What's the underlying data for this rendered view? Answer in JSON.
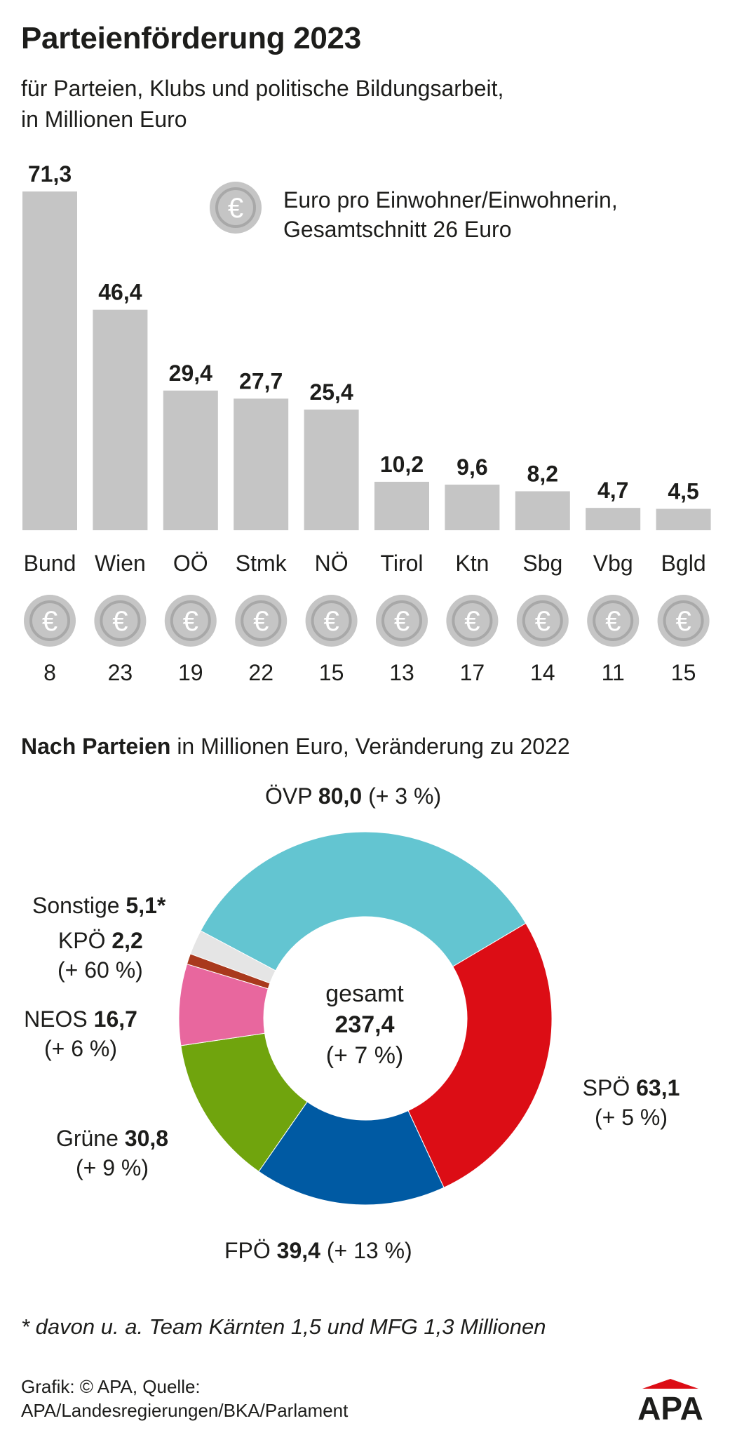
{
  "title": "Parteienförderung 2023",
  "subtitle_line1": "für Parteien, Klubs und politische Bildungsarbeit,",
  "subtitle_line2": "in Millionen Euro",
  "legend": {
    "line1": "Euro pro Einwohner/Einwohnerin,",
    "line2": "Gesamtschnitt 26 Euro",
    "icon": "euro-coin-icon"
  },
  "colors": {
    "bar": "#c5c5c5",
    "coin": "#c5c5c5",
    "coin_symbol": "#a8a8a8",
    "ovp": "#63c5d1",
    "spo": "#dc0d15",
    "fpo": "#005aa3",
    "gruene": "#70a40d",
    "neos": "#e8679e",
    "kpo": "#a9391d",
    "sonstige": "#e5e5e5"
  },
  "chart_data": [
    {
      "type": "bar",
      "categories": [
        "Bund",
        "Wien",
        "OÖ",
        "Stmk",
        "NÖ",
        "Tirol",
        "Ktn",
        "Sbg",
        "Vbg",
        "Bgld"
      ],
      "values": [
        71.3,
        46.4,
        29.4,
        27.7,
        25.4,
        10.2,
        9.6,
        8.2,
        4.7,
        4.5
      ],
      "value_labels": [
        "71,3",
        "46,4",
        "29,4",
        "27,7",
        "25,4",
        "10,2",
        "9,6",
        "8,2",
        "4,7",
        "4,5"
      ],
      "per_capita_euro": [
        "8",
        "23",
        "19",
        "22",
        "15",
        "13",
        "17",
        "14",
        "11",
        "15"
      ],
      "ylim": [
        0,
        71.3
      ]
    },
    {
      "type": "pie",
      "slices": [
        {
          "name": "ÖVP",
          "value": 80.0,
          "value_label": "80,0",
          "change": "(+ 3 %)",
          "color_key": "ovp"
        },
        {
          "name": "SPÖ",
          "value": 63.1,
          "value_label": "63,1",
          "change": "(+ 5 %)",
          "color_key": "spo"
        },
        {
          "name": "FPÖ",
          "value": 39.4,
          "value_label": "39,4",
          "change": "(+ 13 %)",
          "color_key": "fpo"
        },
        {
          "name": "Grüne",
          "value": 30.8,
          "value_label": "30,8",
          "change": "(+ 9 %)",
          "color_key": "gruene"
        },
        {
          "name": "NEOS",
          "value": 16.7,
          "value_label": "16,7",
          "change": "(+ 6 %)",
          "color_key": "neos"
        },
        {
          "name": "KPÖ",
          "value": 2.2,
          "value_label": "2,2",
          "change": "(+ 60 %)",
          "color_key": "kpo"
        },
        {
          "name": "Sonstige",
          "value": 5.1,
          "value_label": "5,1*",
          "change": "",
          "color_key": "sonstige"
        }
      ],
      "center": {
        "line1": "gesamt",
        "line2": "237,4",
        "line3": "(+ 7 %)"
      }
    }
  ],
  "section2": {
    "bold": "Nach Parteien",
    "rest": " in Millionen Euro, Veränderung zu 2022"
  },
  "footnote": "* davon u. a. Team Kärnten 1,5 und MFG 1,3 Millionen",
  "source_line1": "Grafik: © APA, Quelle:",
  "source_line2": "APA/Landesregierungen/BKA/Parlament",
  "logo_text": "APA"
}
